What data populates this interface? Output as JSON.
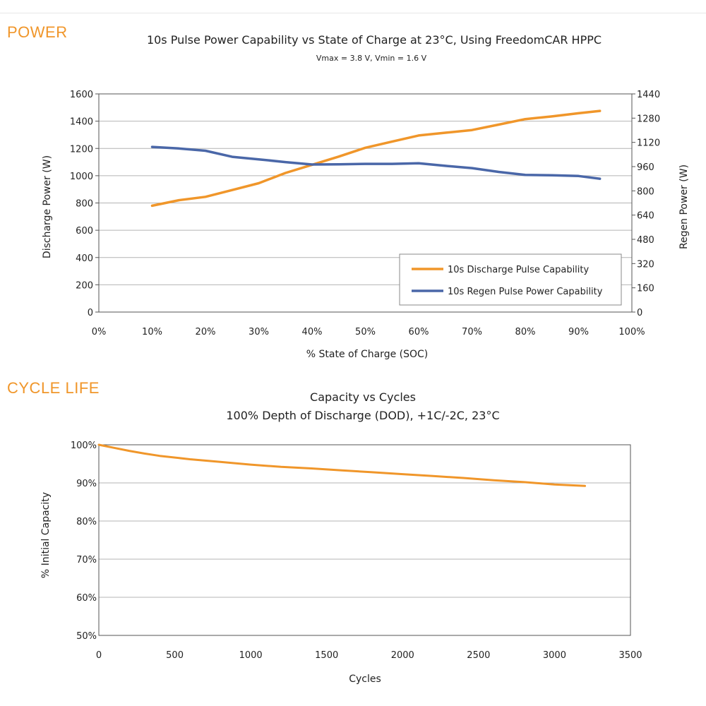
{
  "sections": {
    "power": "POWER",
    "cycle_life": "CYCLE LIFE"
  },
  "colors": {
    "accent": "#f0962a",
    "discharge": "#f0962a",
    "regen": "#4a67a8",
    "grid": "#b4b4b4"
  },
  "chart_data": [
    {
      "type": "line",
      "title": "10s Pulse Power Capability vs State of Charge at 23°C, Using FreedomCAR HPPC",
      "subtitle": "Vmax = 3.8 V, Vmin = 1.6 V",
      "xlabel": "% State of Charge (SOC)",
      "ylabel": "Discharge Power (W)",
      "y2label": "Regen Power (W)",
      "xlim": [
        0,
        100
      ],
      "ylim": [
        0,
        1600
      ],
      "y2lim": [
        0,
        1440
      ],
      "xticks": [
        "0%",
        "10%",
        "20%",
        "30%",
        "40%",
        "50%",
        "60%",
        "70%",
        "80%",
        "90%",
        "100%"
      ],
      "yticks": [
        "0",
        "200",
        "400",
        "600",
        "800",
        "1000",
        "1200",
        "1400",
        "1600"
      ],
      "y2ticks": [
        "0",
        "160",
        "320",
        "480",
        "640",
        "800",
        "960",
        "1120",
        "1280",
        "1440"
      ],
      "grid": true,
      "legend_position": "bottom-right",
      "series": [
        {
          "name": "10s Discharge Pulse Capability",
          "axis": "left",
          "x": [
            10,
            15,
            20,
            25,
            30,
            35,
            40,
            45,
            50,
            55,
            60,
            65,
            70,
            75,
            80,
            85,
            90,
            94
          ],
          "y": [
            780,
            820,
            845,
            895,
            945,
            1020,
            1080,
            1140,
            1205,
            1250,
            1295,
            1315,
            1335,
            1375,
            1415,
            1435,
            1458,
            1475
          ]
        },
        {
          "name": "10s Regen Pulse Power Capability",
          "axis": "right",
          "x": [
            10,
            15,
            20,
            25,
            30,
            35,
            40,
            45,
            50,
            55,
            60,
            65,
            70,
            75,
            80,
            85,
            90,
            94
          ],
          "y": [
            1090,
            1080,
            1065,
            1025,
            1008,
            990,
            974,
            975,
            978,
            978,
            982,
            965,
            950,
            925,
            905,
            903,
            898,
            880
          ]
        }
      ]
    },
    {
      "type": "line",
      "title": "Capacity vs Cycles",
      "subtitle": "100% Depth of Discharge (DOD), +1C/-2C, 23°C",
      "xlabel": "Cycles",
      "ylabel": "% Initial Capacity",
      "xlim": [
        0,
        3500
      ],
      "ylim": [
        50,
        100
      ],
      "xticks": [
        "0",
        "500",
        "1000",
        "1500",
        "2000",
        "2500",
        "3000",
        "3500"
      ],
      "yticks": [
        "50%",
        "60%",
        "70%",
        "80%",
        "90%",
        "100%"
      ],
      "grid": true,
      "series": [
        {
          "name": "Capacity",
          "x": [
            0,
            100,
            200,
            300,
            400,
            600,
            800,
            1000,
            1200,
            1400,
            1600,
            1800,
            2000,
            2200,
            2400,
            2600,
            2800,
            3000,
            3200
          ],
          "y": [
            100,
            99.2,
            98.4,
            97.7,
            97.1,
            96.2,
            95.5,
            94.8,
            94.2,
            93.8,
            93.3,
            92.8,
            92.3,
            91.8,
            91.3,
            90.7,
            90.2,
            89.6,
            89.2
          ]
        }
      ]
    }
  ]
}
